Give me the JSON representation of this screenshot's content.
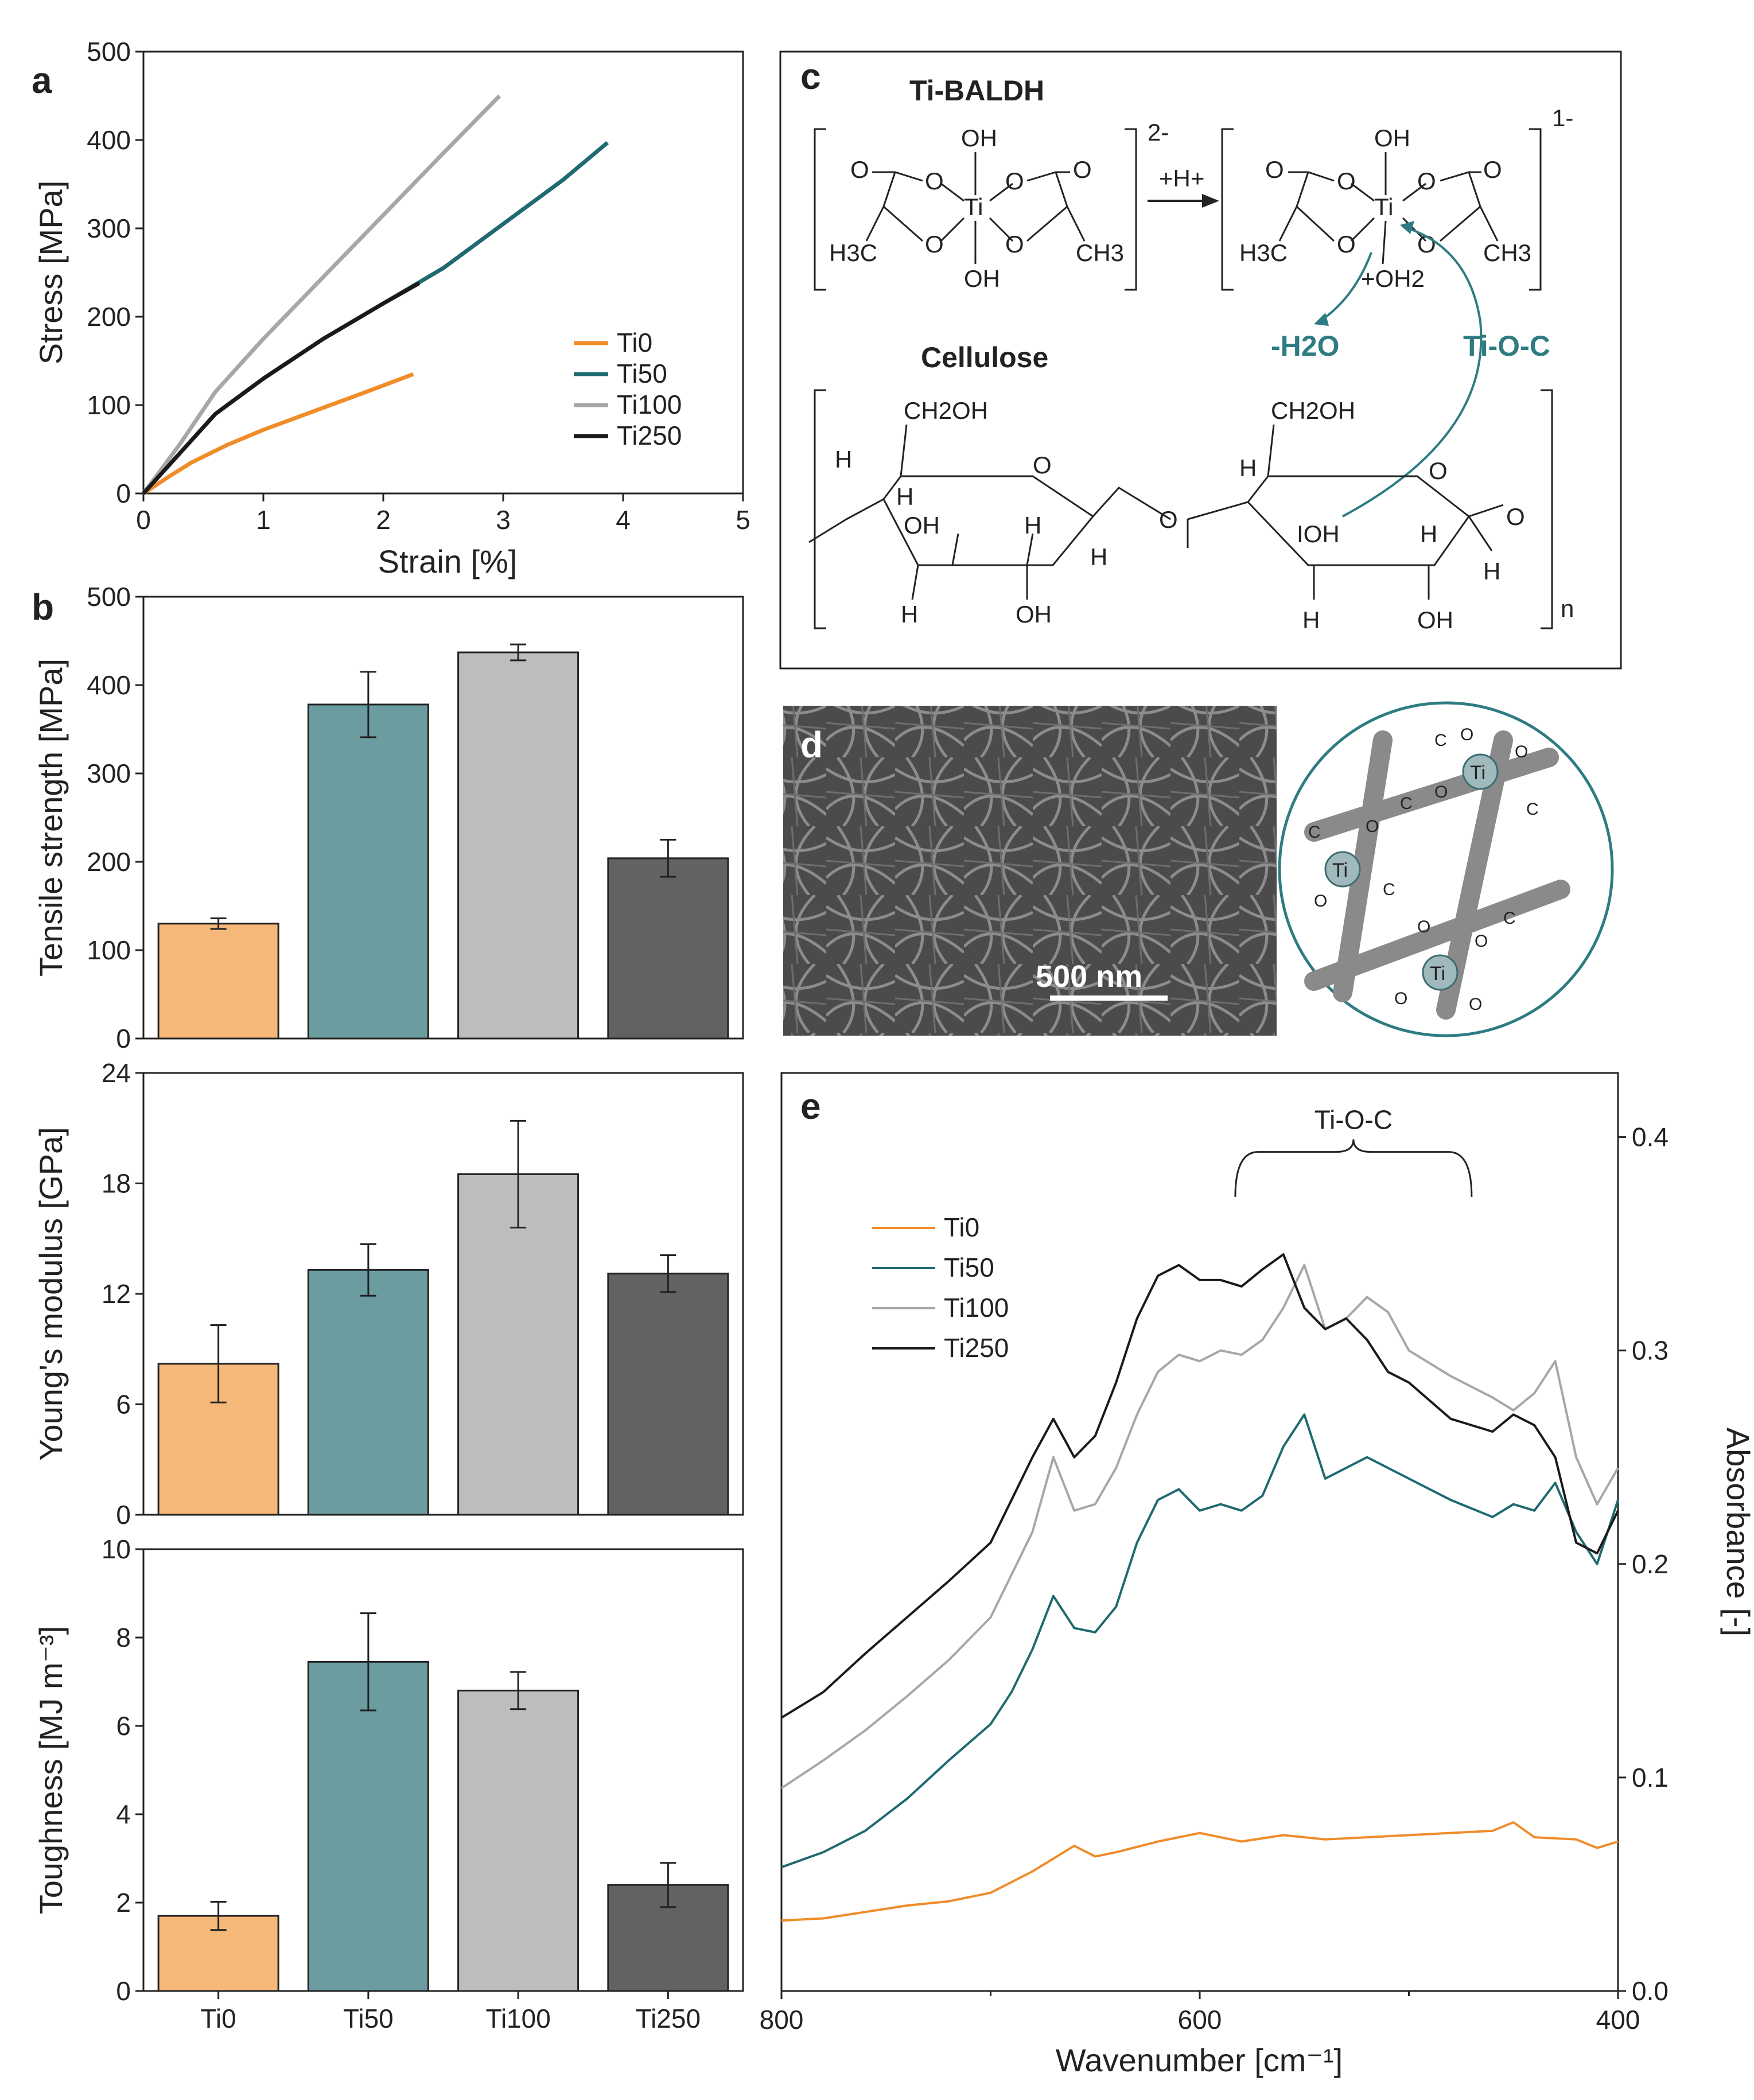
{
  "colors": {
    "Ti0": "#f08c2a",
    "Ti50": "#1e6a70",
    "Ti100": "#a7a7a7",
    "Ti250": "#1a1a1a",
    "bar_Ti0": "#f5b878",
    "bar_Ti50": "#6a9ca0",
    "bar_Ti100": "#bdbdbd",
    "bar_Ti250": "#626262",
    "teal_text": "#2e7c82"
  },
  "chart_data": [
    {
      "id": "a",
      "type": "line",
      "panel_label": "a",
      "xlabel": "Strain [%]",
      "ylabel": "Stress [MPa]",
      "xlim": [
        0,
        5
      ],
      "ylim": [
        0,
        500
      ],
      "xticks": [
        0,
        1,
        2,
        3,
        4,
        5
      ],
      "yticks": [
        0,
        100,
        200,
        300,
        400,
        500
      ],
      "legend_position": "right-middle",
      "series": [
        {
          "name": "Ti0",
          "x": [
            0,
            0.2,
            0.4,
            0.7,
            1.0,
            1.4,
            1.8,
            2.25
          ],
          "y": [
            0,
            18,
            35,
            55,
            72,
            92,
            112,
            135
          ]
        },
        {
          "name": "Ti50",
          "x": [
            0,
            0.3,
            0.6,
            1.0,
            1.5,
            2.0,
            2.5,
            3.0,
            3.5,
            3.87
          ],
          "y": [
            0,
            45,
            90,
            130,
            175,
            215,
            255,
            305,
            355,
            397
          ]
        },
        {
          "name": "Ti100",
          "x": [
            0,
            0.3,
            0.6,
            1.0,
            1.5,
            2.0,
            2.5,
            2.97
          ],
          "y": [
            0,
            55,
            115,
            175,
            245,
            315,
            385,
            450
          ]
        },
        {
          "name": "Ti250",
          "x": [
            0,
            0.3,
            0.6,
            1.0,
            1.5,
            2.0,
            2.3
          ],
          "y": [
            0,
            45,
            90,
            130,
            175,
            215,
            238
          ]
        }
      ]
    },
    {
      "id": "b1",
      "type": "bar",
      "panel_label": "b",
      "ylabel": "Tensile strength [MPa]",
      "ylim": [
        0,
        500
      ],
      "yticks": [
        0,
        100,
        200,
        300,
        400,
        500
      ],
      "categories": [
        "Ti0",
        "Ti50",
        "Ti100",
        "Ti250"
      ],
      "values": [
        130,
        378,
        437,
        204
      ],
      "errors": [
        6,
        37,
        9,
        21
      ]
    },
    {
      "id": "b2",
      "type": "bar",
      "ylabel": "Young's modulus  [GPa]",
      "ylim": [
        0,
        24
      ],
      "yticks": [
        0,
        6,
        12,
        18,
        24
      ],
      "categories": [
        "Ti0",
        "Ti50",
        "Ti100",
        "Ti250"
      ],
      "values": [
        8.2,
        13.3,
        18.5,
        13.1
      ],
      "errors": [
        2.1,
        1.4,
        2.9,
        1.0
      ]
    },
    {
      "id": "b3",
      "type": "bar",
      "ylabel": "Toughness [MJ m⁻³]",
      "ylim": [
        0,
        10
      ],
      "yticks": [
        0,
        2,
        4,
        6,
        8,
        10
      ],
      "xticklabels": [
        "Ti0",
        "Ti50",
        "Ti100",
        "Ti250"
      ],
      "categories": [
        "Ti0",
        "Ti50",
        "Ti100",
        "Ti250"
      ],
      "values": [
        1.7,
        7.45,
        6.8,
        2.4
      ],
      "errors": [
        0.32,
        1.1,
        0.42,
        0.5
      ]
    },
    {
      "id": "e",
      "type": "line",
      "panel_label": "e",
      "xlabel": "Wavenumber [cm⁻¹]",
      "ylabel": "Absorbance [-]",
      "xlim": [
        800,
        400
      ],
      "ylim": [
        0.0,
        0.43
      ],
      "xticks": [
        800,
        600,
        400
      ],
      "yticks": [
        0.0,
        0.1,
        0.2,
        0.3,
        0.4
      ],
      "ytick_labels": [
        "0.0",
        "0.1",
        "0.2",
        "0.3",
        "0.4"
      ],
      "y_axis_side": "right",
      "annotation": "Ti-O-C",
      "annotation_range": [
        583,
        470
      ],
      "legend_position": "top-left",
      "series": [
        {
          "name": "Ti0",
          "x": [
            800,
            780,
            760,
            740,
            720,
            700,
            690,
            680,
            670,
            660,
            650,
            640,
            620,
            600,
            580,
            560,
            540,
            520,
            500,
            480,
            460,
            450,
            440,
            420,
            410,
            400
          ],
          "y": [
            0.033,
            0.034,
            0.037,
            0.04,
            0.042,
            0.046,
            0.051,
            0.056,
            0.062,
            0.068,
            0.063,
            0.065,
            0.07,
            0.074,
            0.07,
            0.073,
            0.071,
            0.072,
            0.073,
            0.074,
            0.075,
            0.079,
            0.072,
            0.071,
            0.067,
            0.07
          ]
        },
        {
          "name": "Ti50",
          "x": [
            800,
            780,
            760,
            740,
            720,
            700,
            690,
            680,
            670,
            660,
            650,
            640,
            630,
            620,
            610,
            600,
            590,
            580,
            570,
            560,
            550,
            540,
            530,
            520,
            510,
            500,
            480,
            460,
            450,
            440,
            430,
            420,
            410,
            400
          ],
          "y": [
            0.058,
            0.065,
            0.075,
            0.09,
            0.108,
            0.125,
            0.14,
            0.16,
            0.185,
            0.17,
            0.168,
            0.18,
            0.21,
            0.23,
            0.235,
            0.225,
            0.228,
            0.225,
            0.232,
            0.255,
            0.27,
            0.24,
            0.245,
            0.25,
            0.245,
            0.24,
            0.23,
            0.222,
            0.228,
            0.225,
            0.238,
            0.215,
            0.2,
            0.23
          ]
        },
        {
          "name": "Ti100",
          "x": [
            800,
            780,
            760,
            740,
            720,
            700,
            690,
            680,
            670,
            660,
            650,
            640,
            630,
            620,
            610,
            600,
            590,
            580,
            570,
            560,
            550,
            540,
            530,
            520,
            510,
            500,
            480,
            460,
            450,
            440,
            430,
            420,
            410,
            400
          ],
          "y": [
            0.095,
            0.108,
            0.122,
            0.138,
            0.155,
            0.175,
            0.195,
            0.215,
            0.25,
            0.225,
            0.228,
            0.245,
            0.27,
            0.29,
            0.298,
            0.295,
            0.3,
            0.298,
            0.305,
            0.32,
            0.34,
            0.31,
            0.315,
            0.325,
            0.318,
            0.3,
            0.288,
            0.278,
            0.272,
            0.28,
            0.295,
            0.25,
            0.228,
            0.245
          ]
        },
        {
          "name": "Ti250",
          "x": [
            800,
            780,
            760,
            740,
            720,
            700,
            690,
            680,
            670,
            660,
            650,
            640,
            630,
            620,
            610,
            600,
            590,
            580,
            570,
            560,
            550,
            540,
            530,
            520,
            510,
            500,
            480,
            460,
            450,
            440,
            430,
            420,
            410,
            400
          ],
          "y": [
            0.128,
            0.14,
            0.158,
            0.175,
            0.192,
            0.21,
            0.23,
            0.25,
            0.268,
            0.25,
            0.26,
            0.285,
            0.315,
            0.335,
            0.34,
            0.333,
            0.333,
            0.33,
            0.338,
            0.345,
            0.32,
            0.31,
            0.315,
            0.305,
            0.29,
            0.285,
            0.268,
            0.262,
            0.27,
            0.265,
            0.25,
            0.21,
            0.205,
            0.225
          ]
        }
      ]
    }
  ],
  "panel_c": {
    "label": "c",
    "title": "Ti-BALDH",
    "charge_left": "2-",
    "charge_right": "1-",
    "arrow_label": "+H+",
    "oh": "OH",
    "ti": "Ti",
    "o": "O",
    "h3c": "H3C",
    "ch3": "CH3",
    "oh2": "+OH2",
    "minus_water": "-H2O",
    "bond_label": "Ti-O-C",
    "cellulose_title": "Cellulose",
    "ch2oh": "CH2OH",
    "h": "H",
    "oh_lone": "IOH",
    "n": "n"
  },
  "panel_d": {
    "label": "d",
    "scale_bar": "500 nm",
    "c_atom": "C",
    "o_atom": "O",
    "ti_atom": "Ti"
  }
}
